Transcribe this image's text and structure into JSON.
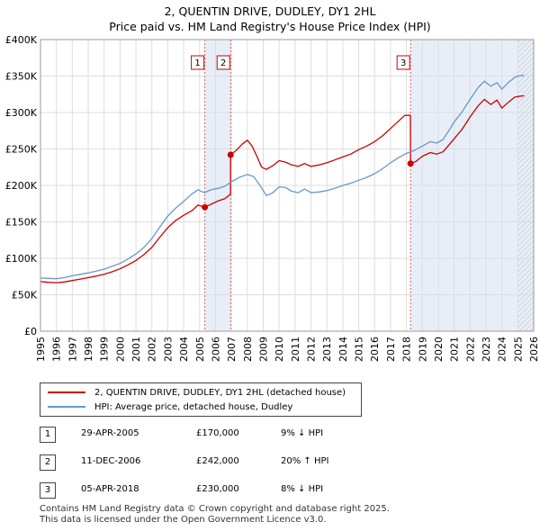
{
  "chart_data": {
    "type": "line",
    "title": "2, QUENTIN DRIVE, DUDLEY, DY1 2HL",
    "subtitle": "Price paid vs. HM Land Registry's House Price Index (HPI)",
    "xlim": [
      1995,
      2026
    ],
    "ylim": [
      0,
      400000
    ],
    "x_ticks": [
      "1995",
      "1996",
      "1997",
      "1998",
      "1999",
      "2000",
      "2001",
      "2002",
      "2003",
      "2004",
      "2005",
      "2006",
      "2007",
      "2008",
      "2009",
      "2010",
      "2011",
      "2012",
      "2013",
      "2014",
      "2015",
      "2016",
      "2017",
      "2018",
      "2019",
      "2020",
      "2021",
      "2022",
      "2023",
      "2024",
      "2025",
      "2026"
    ],
    "y_ticks": [
      {
        "value": 0,
        "label": "£0"
      },
      {
        "value": 50000,
        "label": "£50K"
      },
      {
        "value": 100000,
        "label": "£100K"
      },
      {
        "value": 150000,
        "label": "£150K"
      },
      {
        "value": 200000,
        "label": "£200K"
      },
      {
        "value": 250000,
        "label": "£250K"
      },
      {
        "value": 300000,
        "label": "£300K"
      },
      {
        "value": 350000,
        "label": "£350K"
      },
      {
        "value": 400000,
        "label": "£400K"
      }
    ],
    "grid": true,
    "forecast_from": 2025.0,
    "series": [
      {
        "name": "2, QUENTIN DRIVE, DUDLEY, DY1 2HL (detached house)",
        "color": "#cc0000",
        "points": [
          [
            1995.0,
            68000
          ],
          [
            1995.5,
            67000
          ],
          [
            1996.0,
            66500
          ],
          [
            1996.5,
            67500
          ],
          [
            1997.0,
            69500
          ],
          [
            1997.5,
            71500
          ],
          [
            1998.0,
            73500
          ],
          [
            1998.5,
            75500
          ],
          [
            1999.0,
            78000
          ],
          [
            1999.5,
            81500
          ],
          [
            2000.0,
            85500
          ],
          [
            2000.5,
            91000
          ],
          [
            2001.0,
            97000
          ],
          [
            2001.5,
            105000
          ],
          [
            2002.0,
            115000
          ],
          [
            2002.5,
            129000
          ],
          [
            2003.0,
            142000
          ],
          [
            2003.5,
            152000
          ],
          [
            2004.0,
            159000
          ],
          [
            2004.5,
            165000
          ],
          [
            2004.9,
            173000
          ],
          [
            2005.33,
            170000
          ],
          [
            2005.7,
            174000
          ],
          [
            2006.2,
            179000
          ],
          [
            2006.6,
            182000
          ],
          [
            2006.94,
            188000
          ],
          [
            2006.95,
            242000
          ],
          [
            2007.3,
            248000
          ],
          [
            2007.7,
            257000
          ],
          [
            2008.0,
            262000
          ],
          [
            2008.3,
            254000
          ],
          [
            2008.6,
            240000
          ],
          [
            2008.9,
            225000
          ],
          [
            2009.2,
            222000
          ],
          [
            2009.6,
            227000
          ],
          [
            2010.0,
            234000
          ],
          [
            2010.4,
            232000
          ],
          [
            2010.8,
            228000
          ],
          [
            2011.2,
            226000
          ],
          [
            2011.6,
            230000
          ],
          [
            2012.0,
            226000
          ],
          [
            2012.5,
            228000
          ],
          [
            2013.0,
            231000
          ],
          [
            2013.5,
            235000
          ],
          [
            2014.0,
            239000
          ],
          [
            2014.5,
            243000
          ],
          [
            2015.0,
            249000
          ],
          [
            2015.5,
            254000
          ],
          [
            2016.0,
            260000
          ],
          [
            2016.5,
            268000
          ],
          [
            2017.0,
            278000
          ],
          [
            2017.5,
            288000
          ],
          [
            2017.9,
            296000
          ],
          [
            2018.25,
            296000
          ],
          [
            2018.26,
            230000
          ],
          [
            2018.6,
            233000
          ],
          [
            2019.0,
            240000
          ],
          [
            2019.5,
            245000
          ],
          [
            2019.9,
            243000
          ],
          [
            2020.3,
            246000
          ],
          [
            2020.7,
            256000
          ],
          [
            2021.0,
            264000
          ],
          [
            2021.5,
            277000
          ],
          [
            2022.0,
            294000
          ],
          [
            2022.5,
            309000
          ],
          [
            2022.9,
            318000
          ],
          [
            2023.3,
            311000
          ],
          [
            2023.7,
            317000
          ],
          [
            2024.0,
            306000
          ],
          [
            2024.4,
            314000
          ],
          [
            2024.8,
            321000
          ],
          [
            2025.0,
            322000
          ],
          [
            2025.4,
            323000
          ]
        ]
      },
      {
        "name": "HPI: Average price, detached house, Dudley",
        "color": "#6699cc",
        "points": [
          [
            1995.0,
            73000
          ],
          [
            1995.5,
            72500
          ],
          [
            1996.0,
            72000
          ],
          [
            1996.5,
            73500
          ],
          [
            1997.0,
            76000
          ],
          [
            1997.5,
            78000
          ],
          [
            1998.0,
            80000
          ],
          [
            1998.5,
            82500
          ],
          [
            1999.0,
            85000
          ],
          [
            1999.5,
            89000
          ],
          [
            2000.0,
            93000
          ],
          [
            2000.5,
            99000
          ],
          [
            2001.0,
            106000
          ],
          [
            2001.5,
            115000
          ],
          [
            2002.0,
            127000
          ],
          [
            2002.5,
            143000
          ],
          [
            2003.0,
            158000
          ],
          [
            2003.5,
            169000
          ],
          [
            2004.0,
            178000
          ],
          [
            2004.5,
            188000
          ],
          [
            2004.9,
            194000
          ],
          [
            2005.3,
            190000
          ],
          [
            2005.7,
            194000
          ],
          [
            2006.2,
            196000
          ],
          [
            2006.6,
            199000
          ],
          [
            2007.0,
            205000
          ],
          [
            2007.5,
            211000
          ],
          [
            2008.0,
            215000
          ],
          [
            2008.4,
            212000
          ],
          [
            2008.8,
            200000
          ],
          [
            2009.2,
            186000
          ],
          [
            2009.6,
            190000
          ],
          [
            2010.0,
            198000
          ],
          [
            2010.4,
            197000
          ],
          [
            2010.8,
            192000
          ],
          [
            2011.2,
            190000
          ],
          [
            2011.6,
            195000
          ],
          [
            2012.0,
            190000
          ],
          [
            2012.5,
            191000
          ],
          [
            2013.0,
            193000
          ],
          [
            2013.5,
            196000
          ],
          [
            2014.0,
            200000
          ],
          [
            2014.5,
            203000
          ],
          [
            2015.0,
            207000
          ],
          [
            2015.5,
            211000
          ],
          [
            2016.0,
            216000
          ],
          [
            2016.5,
            223000
          ],
          [
            2017.0,
            231000
          ],
          [
            2017.5,
            238000
          ],
          [
            2018.0,
            244000
          ],
          [
            2018.5,
            248000
          ],
          [
            2019.0,
            254000
          ],
          [
            2019.5,
            260000
          ],
          [
            2019.9,
            258000
          ],
          [
            2020.3,
            263000
          ],
          [
            2020.7,
            276000
          ],
          [
            2021.0,
            287000
          ],
          [
            2021.5,
            301000
          ],
          [
            2022.0,
            318000
          ],
          [
            2022.5,
            334000
          ],
          [
            2022.9,
            343000
          ],
          [
            2023.3,
            336000
          ],
          [
            2023.7,
            341000
          ],
          [
            2024.0,
            332000
          ],
          [
            2024.4,
            341000
          ],
          [
            2024.8,
            348000
          ],
          [
            2025.0,
            350000
          ],
          [
            2025.4,
            351000
          ]
        ]
      }
    ],
    "markers": [
      {
        "label": "1",
        "x": 2005.33,
        "price": 170000
      },
      {
        "label": "2",
        "x": 2006.95,
        "price": 242000
      },
      {
        "label": "3",
        "x": 2018.26,
        "price": 230000
      }
    ],
    "legend": [
      {
        "label": "2, QUENTIN DRIVE, DUDLEY, DY1 2HL (detached house)",
        "color": "#cc0000"
      },
      {
        "label": "HPI: Average price, detached house, Dudley",
        "color": "#6699cc"
      }
    ]
  },
  "transactions": [
    {
      "num": "1",
      "date": "29-APR-2005",
      "price": "£170,000",
      "hpi": "9% ↓ HPI"
    },
    {
      "num": "2",
      "date": "11-DEC-2006",
      "price": "£242,000",
      "hpi": "20% ↑ HPI"
    },
    {
      "num": "3",
      "date": "05-APR-2018",
      "price": "£230,000",
      "hpi": "8% ↓ HPI"
    }
  ],
  "footer": {
    "line1": "Contains HM Land Registry data © Crown copyright and database right 2025.",
    "line2": "This data is licensed under the Open Government Licence v3.0."
  },
  "colors": {
    "band": "#e8eef8",
    "grid": "#dddddd",
    "marker_line": "#e06060"
  }
}
